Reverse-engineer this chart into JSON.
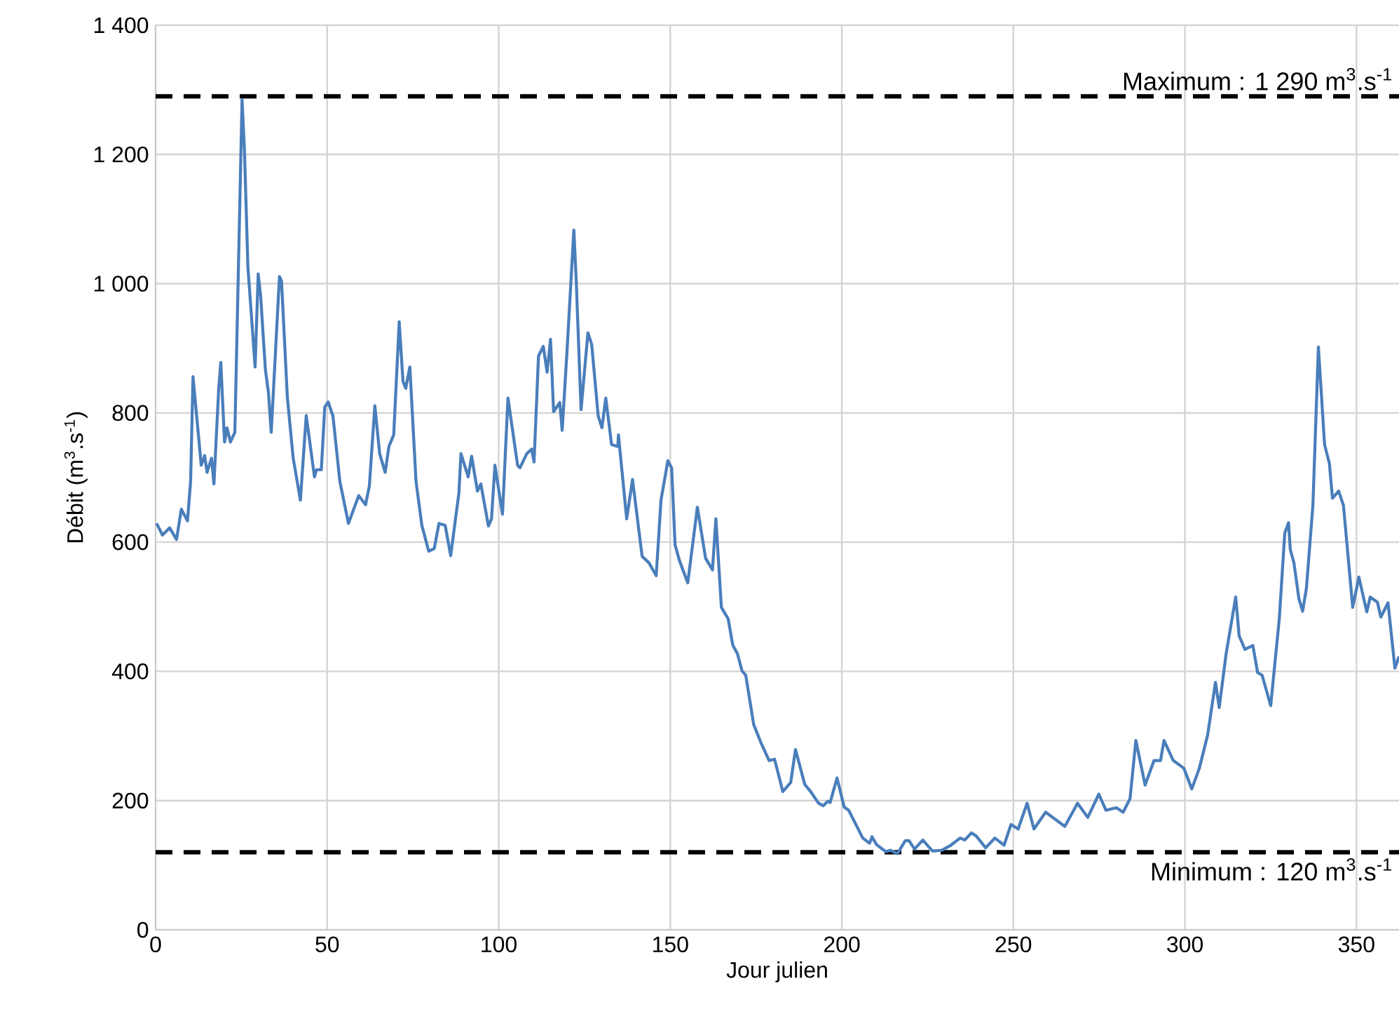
{
  "chart_data": {
    "type": "line",
    "xlabel": "Jour julien",
    "ylabel": "Débit (m$^{3}$.s$^{-1}$)",
    "color": "#4a7ebb",
    "grid": true,
    "xlim": [
      0,
      362.4
    ],
    "xticks": [
      0,
      50,
      100,
      150,
      200,
      250,
      300,
      350
    ],
    "ylim": [
      0,
      1400
    ],
    "yticks": [
      0,
      200,
      400,
      600,
      800,
      {
        "value": 1000,
        "label": "1 000"
      },
      {
        "value": 1200,
        "label": "1 200"
      },
      {
        "value": 1400,
        "label": "1 400"
      }
    ],
    "ref_lines": [
      {
        "axis": "y",
        "value": 1290,
        "label": "Maximum : 1 290 m$^{3}$.s$^{-1}$",
        "color": "#000000",
        "line_style": "dashed"
      },
      {
        "axis": "y",
        "value": 120,
        "label": "Minimum : 120 m$^{3}$.s$^{-1}$",
        "color": "#000000",
        "line_style": "dashed"
      }
    ],
    "x": [
      0.3,
      2,
      4.1,
      6.1,
      7.5,
      9.3,
      10.2,
      10.9,
      13.3,
      14.3,
      15,
      16.3,
      17,
      18.4,
      19,
      20.1,
      20.8,
      21.8,
      23.1,
      25.2,
      25.9,
      26.9,
      29,
      29.9,
      30.6,
      32,
      32.9,
      33.7,
      36.1,
      36.7,
      38.4,
      40.1,
      42.2,
      43.9,
      46.3,
      46.9,
      48.3,
      49.3,
      50.3,
      51.7,
      53.7,
      56.2,
      59.2,
      61.2,
      62.3,
      63.9,
      65.3,
      66.9,
      68,
      69.4,
      71,
      72.1,
      72.9,
      74.1,
      75.9,
      77.6,
      79.6,
      81.2,
      82.6,
      84.4,
      86,
      88.4,
      89,
      91.1,
      92.1,
      93.8,
      94.8,
      97,
      97.9,
      98.9,
      101.1,
      102.7,
      105.5,
      106.2,
      108.2,
      109.6,
      110.3,
      111.6,
      113,
      114.1,
      115.1,
      116,
      117.8,
      118.5,
      119.9,
      121.9,
      122.6,
      124,
      126,
      127.1,
      129,
      130.1,
      131.2,
      132.9,
      134.7,
      134.9,
      137.3,
      139,
      141.8,
      143.8,
      145.9,
      147.3,
      149.3,
      150.4,
      151.4,
      152.7,
      155.1,
      157.9,
      160.3,
      162.3,
      163.3,
      164.9,
      166.9,
      168.2,
      169.6,
      170.9,
      172,
      174.3,
      176.4,
      178.8,
      180.4,
      182.8,
      185.1,
      186.5,
      189.2,
      190.9,
      193.2,
      194.6,
      195.9,
      196.6,
      198.6,
      200.7,
      202,
      206.1,
      208.1,
      208.8,
      210.1,
      212.8,
      214.2,
      216.2,
      218.5,
      219.6,
      221.2,
      223.6,
      226.4,
      229.1,
      231.8,
      234.5,
      235.8,
      237.8,
      239.2,
      241.9,
      244.6,
      247.3,
      249.3,
      251.4,
      254,
      256,
      259.4,
      265,
      268.7,
      271.7,
      274.9,
      277,
      280,
      282,
      284,
      285.7,
      288.4,
      291,
      292.9,
      293.9,
      296.6,
      299.7,
      302,
      304.2,
      306.6,
      308.9,
      310,
      312,
      314.8,
      315.8,
      317.5,
      319.8,
      321.2,
      322.5,
      325,
      327.5,
      329.1,
      330.2,
      330.7,
      331.8,
      333.2,
      334.3,
      335.4,
      337.3,
      338.9,
      340.7,
      342.1,
      343,
      344.8,
      346.2,
      348.9,
      350.7,
      353,
      354,
      356.1,
      357.1,
      359.2,
      361.2,
      362.4
    ],
    "values": [
      629,
      611,
      622,
      604,
      651,
      633,
      694,
      856,
      719,
      734,
      708,
      730,
      690,
      838,
      878,
      755,
      777,
      755,
      770,
      1285,
      1206,
      1026,
      871,
      1015,
      982,
      867,
      831,
      770,
      1011,
      1004,
      824,
      730,
      665,
      796,
      701,
      712,
      712,
      809,
      817,
      795,
      694,
      629,
      672,
      658,
      687,
      811,
      737,
      708,
      748,
      766,
      941,
      849,
      838,
      871,
      694,
      626,
      586,
      590,
      629,
      626,
      579,
      676,
      737,
      701,
      733,
      679,
      690,
      625,
      636,
      719,
      643,
      823,
      719,
      715,
      737,
      744,
      724,
      888,
      903,
      863,
      914,
      802,
      816,
      773,
      895,
      1083,
      1004,
      805,
      924,
      906,
      795,
      777,
      823,
      751,
      748,
      766,
      636,
      697,
      578,
      568,
      548,
      665,
      726,
      715,
      596,
      571,
      537,
      654,
      575,
      557,
      636,
      499,
      481,
      441,
      427,
      401,
      394,
      318,
      290,
      262,
      264,
      214,
      228,
      279,
      225,
      214,
      196,
      192,
      199,
      197,
      235,
      190,
      185,
      142,
      134,
      144,
      132,
      121,
      123,
      118,
      138,
      138,
      125,
      139,
      122,
      123,
      131,
      142,
      139,
      150,
      145,
      127,
      142,
      131,
      163,
      156,
      196,
      156,
      182,
      160,
      196,
      174,
      210,
      185,
      189,
      182,
      203,
      293,
      224,
      262,
      262,
      293,
      262,
      250,
      218,
      250,
      301,
      383,
      344,
      427,
      515,
      455,
      434,
      440,
      398,
      394,
      347,
      481,
      614,
      630,
      589,
      567,
      513,
      493,
      528,
      657,
      902,
      751,
      722,
      668,
      679,
      657,
      499,
      546,
      492,
      515,
      507,
      484,
      506,
      405,
      423
    ]
  }
}
